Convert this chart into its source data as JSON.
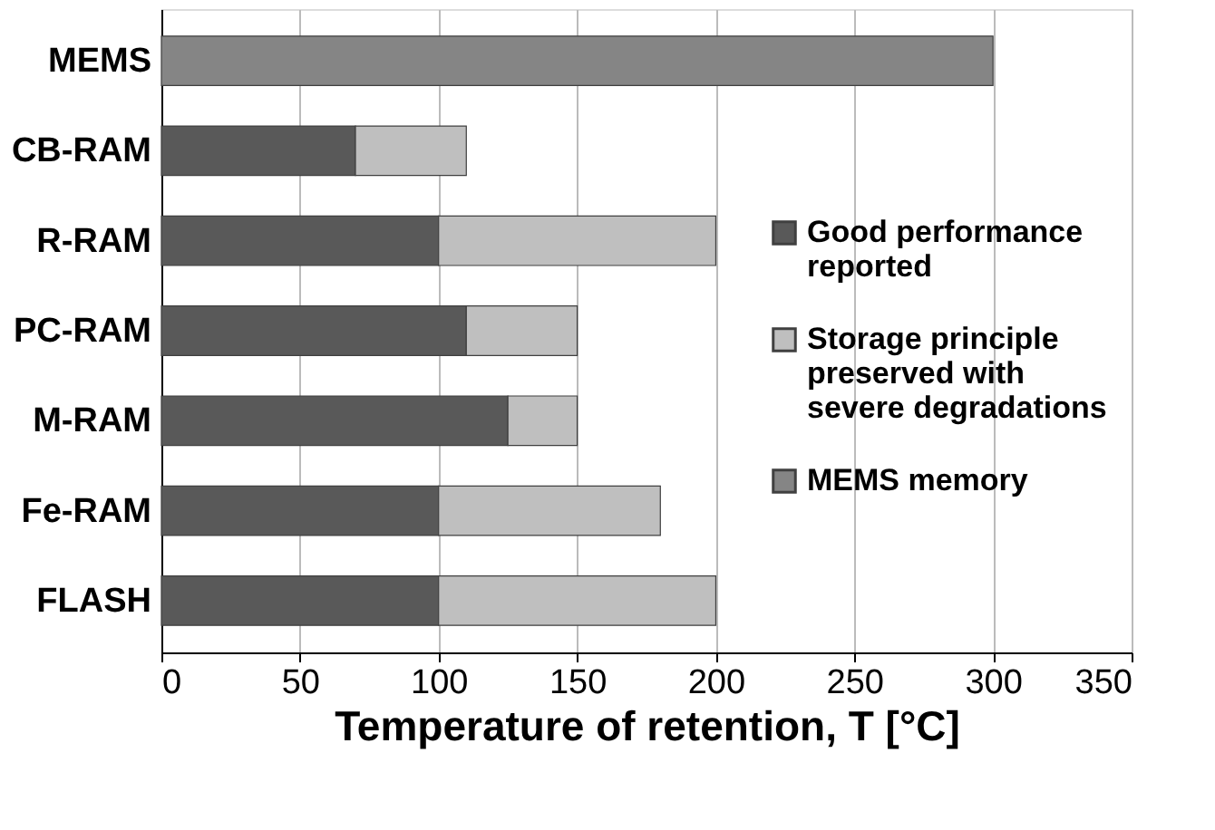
{
  "chart_data": {
    "type": "bar",
    "orientation": "horizontal",
    "stacked": true,
    "categories": [
      "MEMS",
      "CB-RAM",
      "R-RAM",
      "PC-RAM",
      "M-RAM",
      "Fe-RAM",
      "FLASH"
    ],
    "series": [
      {
        "name": "Good performance reported",
        "color": "#595959",
        "values": [
          null,
          70,
          100,
          110,
          125,
          100,
          100
        ]
      },
      {
        "name": "Storage principle preserved with severe degradations",
        "color": "#bfbfbf",
        "values": [
          null,
          40,
          100,
          40,
          25,
          80,
          100
        ]
      },
      {
        "name": "MEMS memory",
        "color": "#858585",
        "values": [
          300,
          null,
          null,
          null,
          null,
          null,
          null
        ]
      }
    ],
    "xlabel": "Temperature of retention, T [°C]",
    "xlim": [
      0,
      350
    ],
    "xticks": [
      0,
      50,
      100,
      150,
      200,
      250,
      300,
      350
    ],
    "grid": "x",
    "legend": "right"
  }
}
